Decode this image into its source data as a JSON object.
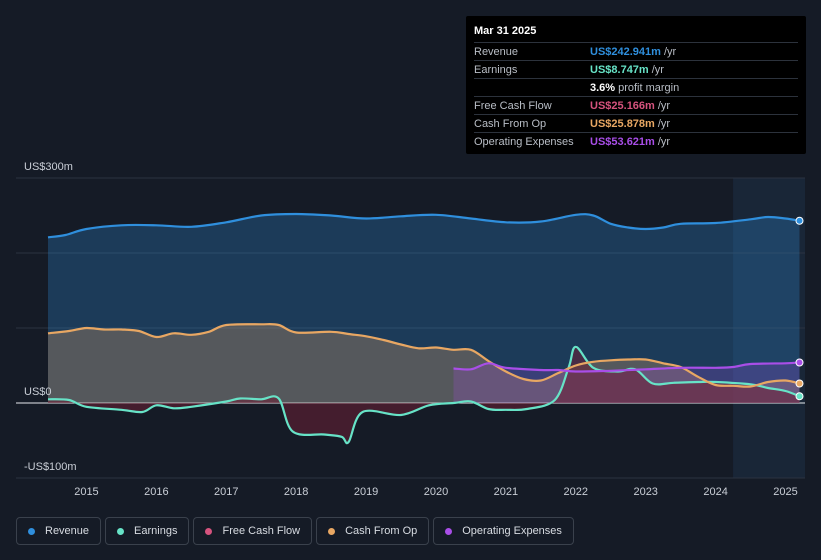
{
  "tooltip": {
    "date": "Mar 31 2025",
    "rows": [
      {
        "label": "Revenue",
        "value": "US$242.941m",
        "unit": "/yr",
        "color": "#2f8fdd"
      },
      {
        "label": "Earnings",
        "value": "US$8.747m",
        "unit": "/yr",
        "color": "#67e3c7"
      },
      {
        "label": "",
        "value": "3.6%",
        "unit": "profit margin",
        "color": "#ffffff"
      },
      {
        "label": "Free Cash Flow",
        "value": "US$25.166m",
        "unit": "/yr",
        "color": "#d6537e"
      },
      {
        "label": "Cash From Op",
        "value": "US$25.878m",
        "unit": "/yr",
        "color": "#e8a763"
      },
      {
        "label": "Operating Expenses",
        "value": "US$53.621m",
        "unit": "/yr",
        "color": "#a94ee8"
      }
    ]
  },
  "legend": [
    {
      "label": "Revenue",
      "color": "#2f8fdd"
    },
    {
      "label": "Earnings",
      "color": "#67e3c7"
    },
    {
      "label": "Free Cash Flow",
      "color": "#d6537e"
    },
    {
      "label": "Cash From Op",
      "color": "#e8a763"
    },
    {
      "label": "Operating Expenses",
      "color": "#a94ee8"
    }
  ],
  "chart_data": {
    "type": "area",
    "y_unit": "US$ millions",
    "ylim": [
      -100,
      300
    ],
    "y_tick_labels": [
      {
        "value": 300,
        "label": "US$300m"
      },
      {
        "value": 0,
        "label": "US$0"
      },
      {
        "value": -100,
        "label": "-US$100m"
      }
    ],
    "xlim": [
      2014.45,
      2025.25
    ],
    "x_ticks": [
      2015,
      2016,
      2017,
      2018,
      2019,
      2020,
      2021,
      2022,
      2023,
      2024,
      2025
    ],
    "forecast_shade_from": 2024.25,
    "series": [
      {
        "name": "Revenue",
        "color": "#2f8fdd",
        "fill": true,
        "x": [
          2014.45,
          2014.7,
          2015.0,
          2015.5,
          2016.0,
          2016.5,
          2017.0,
          2017.5,
          2018.0,
          2018.5,
          2019.0,
          2019.5,
          2020.0,
          2020.5,
          2021.0,
          2021.5,
          2022.0,
          2022.25,
          2022.5,
          2022.75,
          2023.0,
          2023.25,
          2023.5,
          2024.0,
          2024.5,
          2024.75,
          2025.0,
          2025.2
        ],
        "values": [
          221,
          224,
          232,
          237,
          237,
          235,
          241,
          250,
          252,
          250,
          246,
          249,
          251,
          246,
          241,
          242,
          251,
          250,
          239,
          234,
          232,
          234,
          239,
          240,
          245,
          248,
          246,
          243
        ]
      },
      {
        "name": "Earnings",
        "color": "#67e3c7",
        "fill": false,
        "x": [
          2014.45,
          2014.75,
          2015.0,
          2015.5,
          2015.8,
          2016.0,
          2016.25,
          2016.5,
          2017.0,
          2017.2,
          2017.5,
          2017.75,
          2017.95,
          2018.4,
          2018.65,
          2018.75,
          2018.95,
          2019.5,
          2019.9,
          2020.25,
          2020.5,
          2020.75,
          2021.0,
          2021.3,
          2021.7,
          2021.9,
          2022.0,
          2022.25,
          2022.6,
          2022.85,
          2023.1,
          2023.4,
          2023.75,
          2024.0,
          2024.5,
          2024.75,
          2025.0,
          2025.2
        ],
        "values": [
          5,
          4,
          -5,
          -9,
          -12,
          -3,
          -7,
          -5,
          2,
          6,
          5,
          6,
          -38,
          -42,
          -45,
          -52,
          -12,
          -16,
          -3,
          0,
          2,
          -8,
          -9,
          -8,
          4,
          48,
          75,
          47,
          42,
          45,
          26,
          27,
          28,
          28,
          25,
          20,
          16,
          9
        ]
      },
      {
        "name": "Free Cash Flow",
        "color": "#d6537e",
        "fill": false,
        "x": [
          2014.45,
          2015.0,
          2015.5,
          2016.0,
          2016.5,
          2017.0,
          2017.5,
          2018.0,
          2018.5,
          2019.0,
          2019.25,
          2019.5,
          2020.0,
          2020.5,
          2021.0,
          2021.5,
          2022.0,
          2022.5,
          2023.0,
          2023.5,
          2024.0,
          2024.5,
          2025.0,
          2025.2
        ],
        "values": [
          95,
          100,
          97,
          88,
          92,
          103,
          102,
          92,
          90,
          86,
          82,
          74,
          72,
          68,
          50,
          32,
          46,
          53,
          56,
          48,
          27,
          23,
          24,
          25
        ]
      },
      {
        "name": "Cash From Op",
        "color": "#e8a763",
        "fill": true,
        "x": [
          2014.45,
          2014.75,
          2015.0,
          2015.25,
          2015.5,
          2015.75,
          2016.0,
          2016.25,
          2016.5,
          2016.75,
          2017.0,
          2017.5,
          2017.75,
          2018.0,
          2018.5,
          2018.75,
          2019.0,
          2019.25,
          2019.5,
          2019.75,
          2020.0,
          2020.25,
          2020.5,
          2020.75,
          2021.0,
          2021.25,
          2021.5,
          2021.75,
          2022.0,
          2022.25,
          2022.5,
          2022.75,
          2023.0,
          2023.25,
          2023.5,
          2023.75,
          2024.0,
          2024.25,
          2024.5,
          2024.75,
          2025.0,
          2025.2
        ],
        "values": [
          93,
          96,
          100,
          98,
          98,
          96,
          88,
          93,
          91,
          95,
          104,
          105,
          104,
          94,
          95,
          92,
          89,
          84,
          78,
          73,
          74,
          71,
          71,
          56,
          42,
          32,
          30,
          40,
          50,
          55,
          57,
          58,
          58,
          53,
          48,
          35,
          24,
          23,
          22,
          28,
          30,
          26
        ]
      },
      {
        "name": "Operating Expenses",
        "color": "#a94ee8",
        "fill": true,
        "x": [
          2020.25,
          2020.5,
          2020.75,
          2021.0,
          2021.5,
          2021.75,
          2022.0,
          2022.5,
          2023.0,
          2023.5,
          2024.0,
          2024.25,
          2024.5,
          2025.0,
          2025.2
        ],
        "values": [
          46,
          45,
          53,
          47,
          44,
          44,
          42,
          43,
          45,
          47,
          47,
          48,
          52,
          53,
          54
        ]
      }
    ]
  }
}
